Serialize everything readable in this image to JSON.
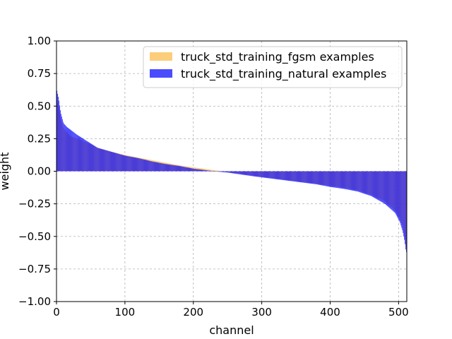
{
  "chart_data": {
    "type": "bar",
    "xlabel": "channel",
    "ylabel": "weight",
    "xlim": [
      0,
      512
    ],
    "ylim": [
      -1.0,
      1.0
    ],
    "grid": true,
    "legend_position": "top-right",
    "x_ticks": [
      0,
      100,
      200,
      300,
      400,
      500
    ],
    "x_tick_labels": [
      "0",
      "100",
      "200",
      "300",
      "400",
      "500"
    ],
    "y_ticks": [
      1.0,
      0.75,
      0.5,
      0.25,
      0.0,
      -0.25,
      -0.5,
      -0.75,
      -1.0
    ],
    "y_tick_labels": [
      "1.00",
      "0.75",
      "0.50",
      "0.25",
      "0.00",
      "−0.25",
      "−0.50",
      "−0.75",
      "−1.00"
    ],
    "curve_note": "sorted per-channel weights; curve control points in (channel, weight)",
    "series": [
      {
        "name": "truck_std_training_fgsm examples",
        "color": "#fbc05a",
        "opacity": 0.8,
        "curve": [
          [
            0,
            0.55
          ],
          [
            3,
            0.5
          ],
          [
            6,
            0.4
          ],
          [
            10,
            0.33
          ],
          [
            15,
            0.3
          ],
          [
            20,
            0.27
          ],
          [
            30,
            0.25
          ],
          [
            45,
            0.22
          ],
          [
            60,
            0.18
          ],
          [
            80,
            0.15
          ],
          [
            100,
            0.125
          ],
          [
            120,
            0.105
          ],
          [
            140,
            0.085
          ],
          [
            160,
            0.065
          ],
          [
            180,
            0.045
          ],
          [
            200,
            0.03
          ],
          [
            215,
            0.02
          ],
          [
            230,
            0.008
          ],
          [
            250,
            -0.005
          ],
          [
            270,
            -0.02
          ],
          [
            290,
            -0.035
          ],
          [
            320,
            -0.055
          ],
          [
            350,
            -0.075
          ],
          [
            380,
            -0.095
          ],
          [
            400,
            -0.11
          ],
          [
            420,
            -0.125
          ],
          [
            440,
            -0.145
          ],
          [
            460,
            -0.18
          ],
          [
            480,
            -0.23
          ],
          [
            495,
            -0.3
          ],
          [
            502,
            -0.36
          ],
          [
            506,
            -0.42
          ],
          [
            509,
            -0.5
          ],
          [
            511,
            -0.58
          ]
        ]
      },
      {
        "name": "truck_std_training_natural examples",
        "color": "#0000ff",
        "opacity": 0.7,
        "curve": [
          [
            0,
            0.63
          ],
          [
            3,
            0.56
          ],
          [
            6,
            0.45
          ],
          [
            10,
            0.37
          ],
          [
            15,
            0.34
          ],
          [
            20,
            0.32
          ],
          [
            30,
            0.28
          ],
          [
            45,
            0.23
          ],
          [
            60,
            0.18
          ],
          [
            80,
            0.15
          ],
          [
            100,
            0.12
          ],
          [
            120,
            0.1
          ],
          [
            140,
            0.075
          ],
          [
            160,
            0.055
          ],
          [
            180,
            0.04
          ],
          [
            200,
            0.02
          ],
          [
            215,
            0.01
          ],
          [
            230,
            0.0
          ],
          [
            250,
            -0.01
          ],
          [
            270,
            -0.025
          ],
          [
            290,
            -0.04
          ],
          [
            320,
            -0.06
          ],
          [
            350,
            -0.08
          ],
          [
            380,
            -0.1
          ],
          [
            400,
            -0.12
          ],
          [
            420,
            -0.135
          ],
          [
            440,
            -0.155
          ],
          [
            460,
            -0.19
          ],
          [
            480,
            -0.25
          ],
          [
            495,
            -0.32
          ],
          [
            502,
            -0.39
          ],
          [
            506,
            -0.46
          ],
          [
            509,
            -0.54
          ],
          [
            511,
            -0.62
          ]
        ]
      }
    ]
  }
}
